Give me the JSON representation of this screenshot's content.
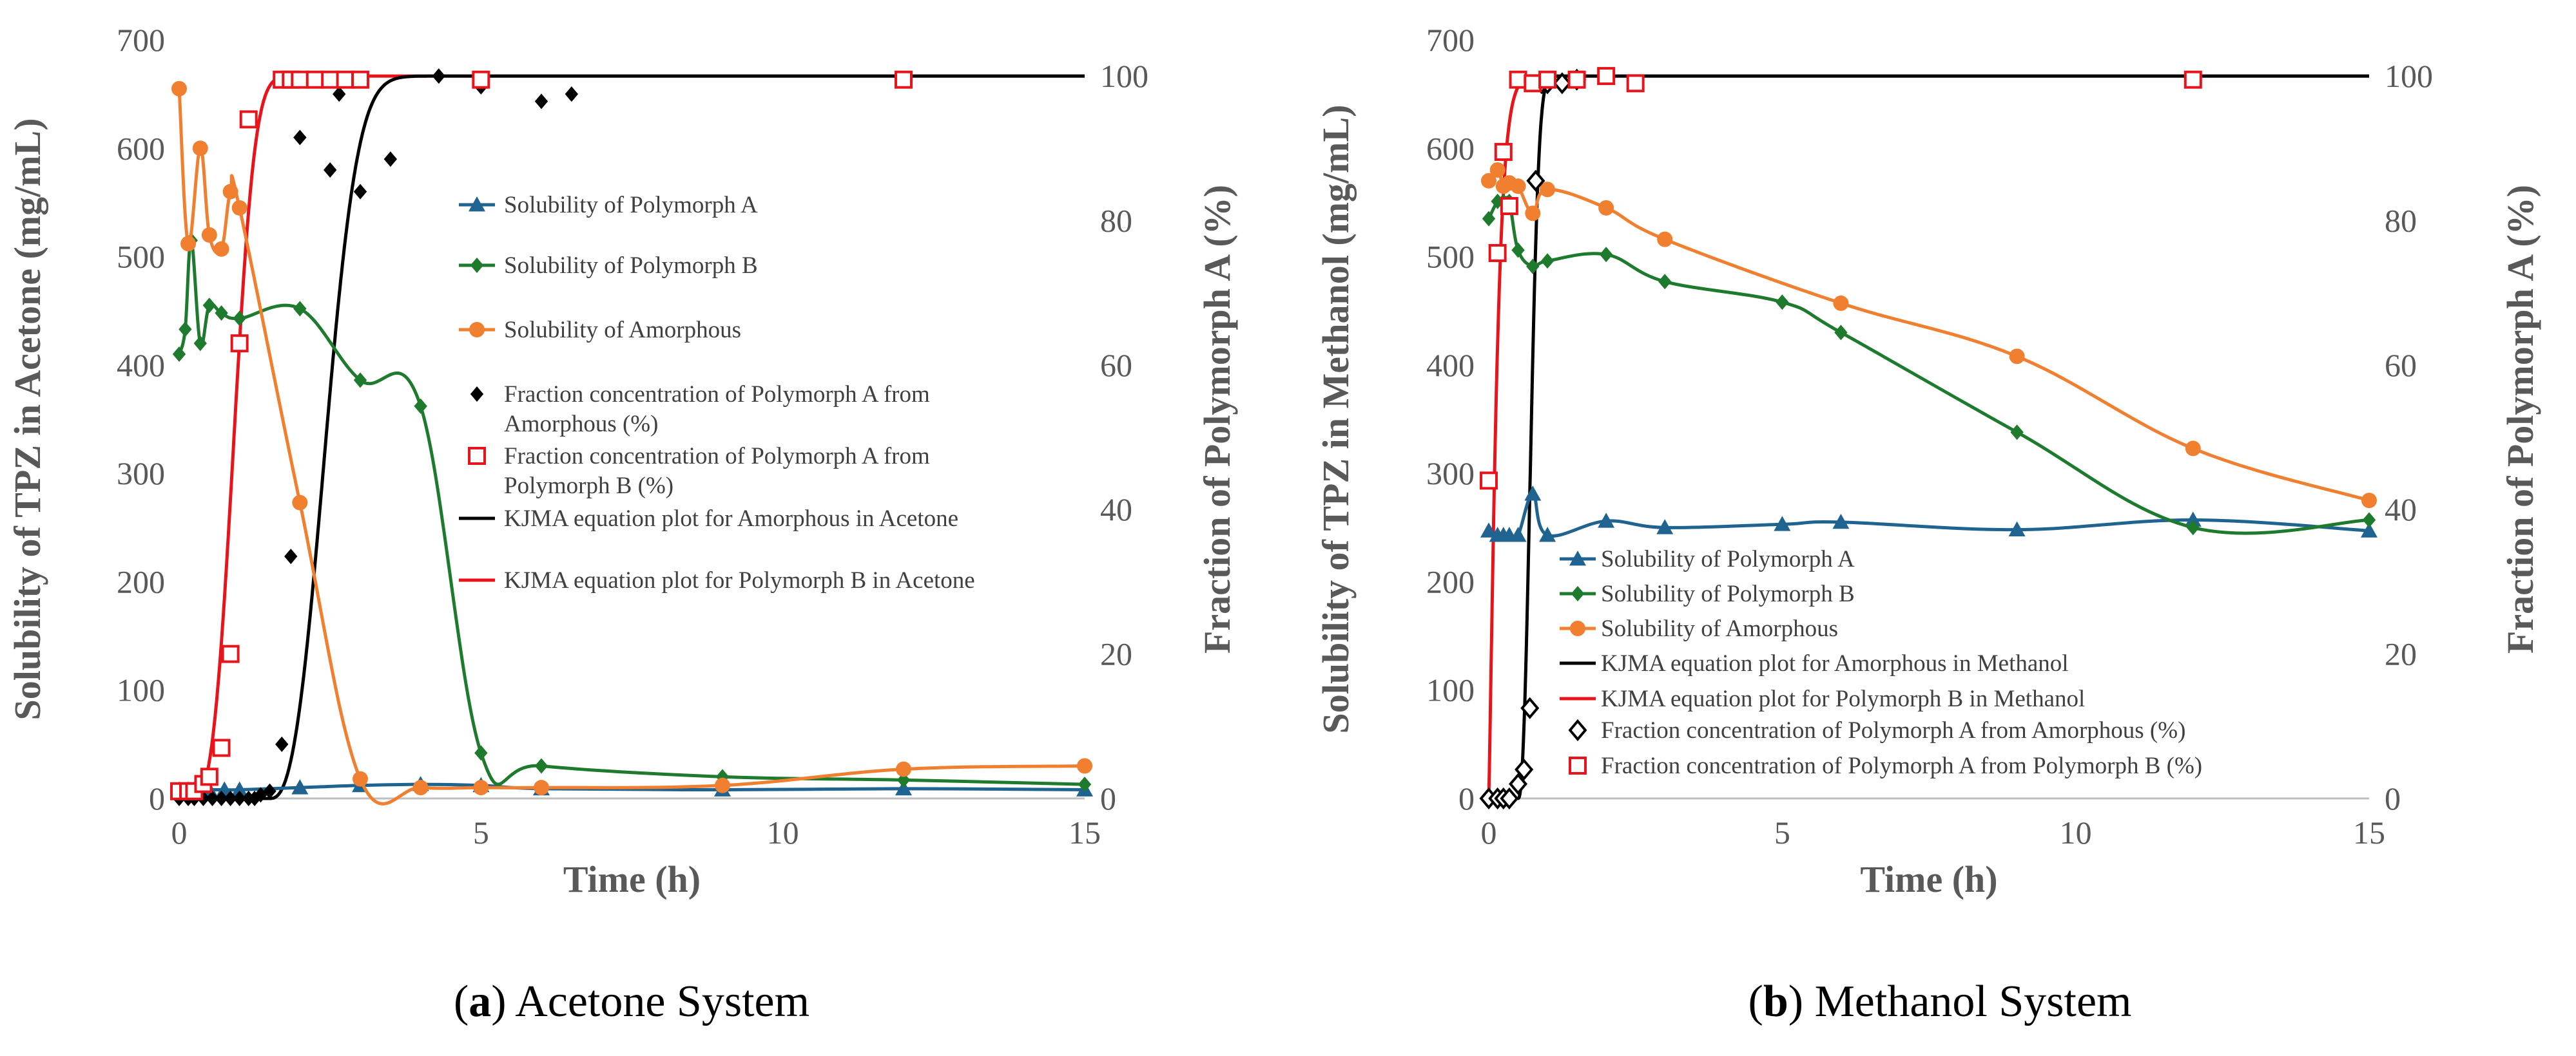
{
  "colors": {
    "polyA": "#1f6391",
    "polyB": "#1e7b2d",
    "amorph": "#f07f2f",
    "fracAm": "#000000",
    "fracB": "#e8141c",
    "kjmaAm": "#000000",
    "kjmaB": "#e8141c",
    "text": "#595959"
  },
  "chart_data": [
    {
      "type": "line",
      "id": "a",
      "caption_label": "a",
      "caption_text": " Acetone System",
      "xlabel": "Time (h)",
      "ylabel": "Solubility of TPZ in Acetone (mg/mL)",
      "y2label": "Fraction of Polymorph A (%)",
      "xlim": [
        0,
        15
      ],
      "ylim": [
        0,
        700
      ],
      "y2lim": [
        0,
        105
      ],
      "xticks": [
        0,
        5,
        10,
        15
      ],
      "yticks": [
        0,
        100,
        200,
        300,
        400,
        500,
        600,
        700
      ],
      "y2ticks": [
        0,
        20,
        40,
        60,
        80,
        100
      ],
      "series": [
        {
          "key": "polyA",
          "name": "Solubility of Polymorph A",
          "axis": "left",
          "marker": "triangle",
          "smooth": true,
          "x": [
            0,
            0.15,
            0.25,
            0.35,
            0.5,
            0.75,
            1,
            2,
            3,
            4,
            5,
            6,
            9,
            12,
            15
          ],
          "y": [
            8,
            8,
            8,
            8,
            8,
            8,
            8,
            10,
            12,
            13,
            12,
            9,
            8,
            9,
            8
          ]
        },
        {
          "key": "polyB",
          "name": "Solubility of Polymorph B",
          "axis": "left",
          "marker": "diamond",
          "smooth": true,
          "x": [
            0,
            0.1,
            0.2,
            0.35,
            0.5,
            0.7,
            1,
            2,
            3,
            4,
            5,
            6,
            9,
            12,
            15
          ],
          "y": [
            410,
            433,
            515,
            420,
            455,
            448,
            443,
            452,
            386,
            362,
            42,
            30,
            20,
            17,
            13
          ]
        },
        {
          "key": "amorph",
          "name": "Solubility of Amorphous",
          "axis": "left",
          "marker": "circle",
          "smooth": true,
          "x": [
            0,
            0.15,
            0.35,
            0.5,
            0.7,
            0.85,
            1,
            2,
            3,
            4,
            5,
            6,
            9,
            12,
            15
          ],
          "y": [
            655,
            512,
            600,
            520,
            507,
            560,
            545,
            273,
            18,
            10,
            10,
            10,
            12,
            27,
            30
          ]
        },
        {
          "key": "fracAm",
          "name": "Fraction concentration of Polymorph A from Amorphous (%)",
          "axis": "right",
          "marker": "filled-diamond",
          "line": false,
          "x": [
            0,
            0.15,
            0.25,
            0.4,
            0.55,
            0.7,
            0.85,
            1,
            1.15,
            1.25,
            1.35,
            1.5,
            1.7,
            1.85,
            2,
            2.5,
            2.65,
            3,
            3.5,
            4.3,
            5,
            6,
            6.5
          ],
          "y": [
            0,
            0,
            0,
            0,
            0,
            0,
            0,
            0,
            0,
            0,
            0.5,
            1,
            7.5,
            33.5,
            91.5,
            87,
            97.5,
            84,
            88.5,
            100,
            98.5,
            96.5,
            97.5
          ]
        },
        {
          "key": "fracB",
          "name": "Fraction concentration of Polymorph A from Polymorph B (%)",
          "axis": "right",
          "marker": "open-square",
          "line": false,
          "x": [
            0,
            0.15,
            0.25,
            0.4,
            0.5,
            0.7,
            0.85,
            1,
            1.15,
            1.7,
            1.85,
            2,
            2.25,
            2.5,
            2.75,
            3,
            5,
            12
          ],
          "y": [
            1,
            1,
            1,
            2,
            3,
            7,
            20,
            63,
            94,
            99.5,
            99.5,
            99.5,
            99.5,
            99.5,
            99.5,
            99.5,
            99.5,
            99.5
          ]
        },
        {
          "key": "kjmaAm",
          "name": "KJMA equation plot for Amorphous in Acetone",
          "axis": "right",
          "marker": "none",
          "function": "kjma",
          "x0": 1.5,
          "k": 0.93,
          "n": 2.6,
          "xmax": 15
        },
        {
          "key": "kjmaB",
          "name": "KJMA equation plot for Polymorph B in Acetone",
          "axis": "right",
          "marker": "none",
          "function": "kjma",
          "x0": 0.2,
          "k": 1.25,
          "n": 3.0,
          "xmax": 15
        }
      ],
      "legend_order": [
        "polyA",
        "polyB",
        "amorph",
        "fracAm",
        "fracB",
        "kjmaAm",
        "kjmaB"
      ],
      "legend_lines": {
        "polyA": [
          "Solubility of Polymorph A"
        ],
        "polyB": [
          "Solubility of Polymorph B"
        ],
        "amorph": [
          "Solubility of Amorphous"
        ],
        "fracAm": [
          "Fraction concentration of Polymorph A from",
          "Amorphous (%)"
        ],
        "fracB": [
          "Fraction concentration of Polymorph A from",
          "Polymorph B (%)"
        ],
        "kjmaAm": [
          "KJMA equation plot for Amorphous in Acetone"
        ],
        "kjmaB": [
          "KJMA equation plot for Polymorph B in Acetone"
        ]
      }
    },
    {
      "type": "line",
      "id": "b",
      "caption_label": "b",
      "caption_text": " Methanol System",
      "xlabel": "Time (h)",
      "ylabel": "Solubility of TPZ in Methanol (mg/mL)",
      "y2label": "Fraction of Polymorph A (%)",
      "xlim": [
        0,
        15
      ],
      "ylim": [
        0,
        700
      ],
      "y2lim": [
        0,
        105
      ],
      "xticks": [
        0,
        5,
        10,
        15
      ],
      "yticks": [
        0,
        100,
        200,
        300,
        400,
        500,
        600,
        700
      ],
      "y2ticks": [
        0,
        20,
        40,
        60,
        80,
        100
      ],
      "series": [
        {
          "key": "polyA",
          "name": "Solubility of Polymorph A",
          "axis": "left",
          "marker": "triangle",
          "smooth": true,
          "x": [
            0,
            0.15,
            0.25,
            0.35,
            0.5,
            0.75,
            1,
            2,
            3,
            5,
            6,
            9,
            12,
            15
          ],
          "y": [
            247,
            243,
            243,
            243,
            243,
            281,
            243,
            256,
            250,
            253,
            255,
            248,
            257,
            247
          ]
        },
        {
          "key": "polyB",
          "name": "Solubility of Polymorph B",
          "axis": "left",
          "marker": "diamond",
          "smooth": true,
          "x": [
            0,
            0.15,
            0.25,
            0.35,
            0.5,
            0.75,
            1,
            2,
            3,
            5,
            6,
            9,
            12,
            15
          ],
          "y": [
            535,
            551,
            551,
            551,
            506,
            491,
            496,
            502,
            477,
            458,
            430,
            338,
            250,
            257
          ]
        },
        {
          "key": "amorph",
          "name": "Solubility of Amorphous",
          "axis": "left",
          "marker": "circle",
          "smooth": true,
          "x": [
            0,
            0.15,
            0.25,
            0.35,
            0.5,
            0.75,
            1,
            2,
            3,
            6,
            9,
            12,
            15
          ],
          "y": [
            570,
            580,
            565,
            568,
            565,
            540,
            562,
            545,
            516,
            457,
            408,
            323,
            275
          ]
        },
        {
          "key": "fracAm",
          "name": "Fraction concentration of Polymorph A from Amorphous (%)",
          "axis": "right",
          "marker": "open-diamond",
          "line": false,
          "x": [
            0,
            0.15,
            0.25,
            0.35,
            0.5,
            0.6,
            0.7,
            0.8,
            0.9,
            1,
            1.25,
            1.5
          ],
          "y": [
            0,
            0,
            0,
            0,
            2,
            4,
            12.5,
            85.5,
            99,
            99,
            99,
            99.5
          ]
        },
        {
          "key": "fracB",
          "name": "Fraction concentration of Polymorph A from Polymorph B (%)",
          "axis": "right",
          "marker": "open-square",
          "line": false,
          "x": [
            0,
            0.15,
            0.25,
            0.35,
            0.5,
            0.75,
            1,
            1.5,
            2,
            2.5,
            12
          ],
          "y": [
            44,
            75.5,
            89.5,
            82,
            99.5,
            99,
            99.5,
            99.5,
            100,
            99,
            99.5
          ]
        },
        {
          "key": "kjmaAm",
          "name": "KJMA equation plot for Amorphous in Methanol",
          "axis": "right",
          "marker": "none",
          "function": "kjma",
          "x0": 0.5,
          "k": 3.9,
          "n": 2.4,
          "xmax": 15
        },
        {
          "key": "kjmaB",
          "name": "KJMA equation plot for Polymorph B in Methanol",
          "axis": "right",
          "marker": "none",
          "function": "kjma",
          "x0": 0,
          "k": 6.6,
          "n": 1.2,
          "xmax": 15
        }
      ],
      "legend_order": [
        "polyA",
        "polyB",
        "amorph",
        "kjmaAm",
        "kjmaB",
        "fracAm",
        "fracB"
      ],
      "legend_lines": {
        "polyA": [
          "Solubility of Polymorph A"
        ],
        "polyB": [
          "Solubility of Polymorph B"
        ],
        "amorph": [
          "Solubility of Amorphous"
        ],
        "kjmaAm": [
          "KJMA equation plot for Amorphous in Methanol"
        ],
        "kjmaB": [
          "KJMA equation plot for Polymorph B in Methanol"
        ],
        "fracAm": [
          "Fraction concentration of Polymorph A from Amorphous (%)"
        ],
        "fracB": [
          "Fraction concentration of Polymorph A from Polymorph B (%)"
        ]
      }
    }
  ]
}
